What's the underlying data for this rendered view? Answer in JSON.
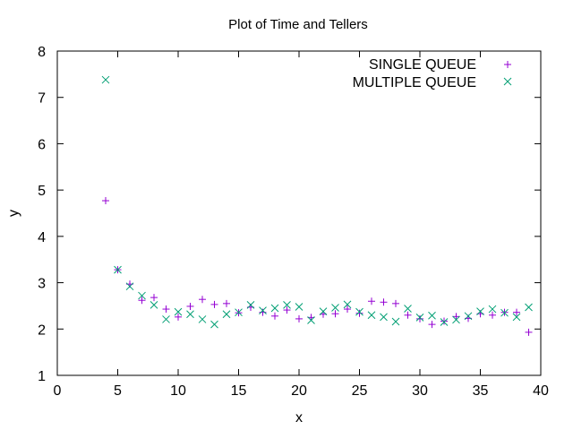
{
  "chart_data": {
    "type": "scatter",
    "title": "Plot of Time and Tellers",
    "xlabel": "x",
    "ylabel": "y",
    "xlim": [
      0,
      40
    ],
    "ylim": [
      1,
      8
    ],
    "xticks": [
      0,
      5,
      10,
      15,
      20,
      25,
      30,
      35,
      40
    ],
    "yticks": [
      1,
      2,
      3,
      4,
      5,
      6,
      7,
      8
    ],
    "grid": false,
    "legend_position": "top-right",
    "x": [
      4,
      5,
      6,
      7,
      8,
      9,
      10,
      11,
      12,
      13,
      14,
      15,
      16,
      17,
      18,
      19,
      20,
      21,
      22,
      23,
      24,
      25,
      26,
      27,
      28,
      29,
      30,
      31,
      32,
      33,
      34,
      35,
      36,
      37,
      38,
      39
    ],
    "series": [
      {
        "name": "SINGLE QUEUE",
        "marker": "plus",
        "color": "#9400d3",
        "values": [
          4.77,
          3.28,
          2.97,
          2.62,
          2.68,
          2.43,
          2.26,
          2.49,
          2.64,
          2.53,
          2.55,
          2.35,
          2.47,
          2.36,
          2.28,
          2.41,
          2.22,
          2.25,
          2.32,
          2.33,
          2.43,
          2.34,
          2.6,
          2.58,
          2.55,
          2.3,
          2.22,
          2.1,
          2.17,
          2.27,
          2.23,
          2.33,
          2.3,
          2.36,
          2.36,
          1.93
        ]
      },
      {
        "name": "MULTIPLE QUEUE",
        "marker": "cross",
        "color": "#009e73",
        "values": [
          7.38,
          3.28,
          2.92,
          2.72,
          2.52,
          2.21,
          2.37,
          2.32,
          2.21,
          2.1,
          2.32,
          2.36,
          2.52,
          2.4,
          2.45,
          2.52,
          2.48,
          2.19,
          2.38,
          2.46,
          2.53,
          2.37,
          2.3,
          2.26,
          2.16,
          2.44,
          2.25,
          2.29,
          2.15,
          2.2,
          2.28,
          2.38,
          2.43,
          2.35,
          2.26,
          2.47
        ]
      }
    ]
  }
}
